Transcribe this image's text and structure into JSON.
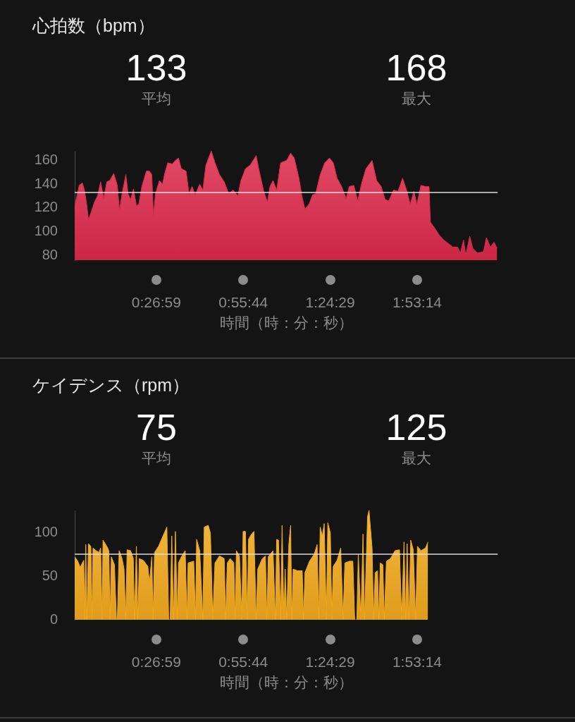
{
  "chart_data": [
    {
      "type": "area",
      "title": "心拍数（bpm）",
      "xlabel": "時間（時：分：秒）",
      "annotations": [
        "133",
        "平均",
        "168",
        "最大"
      ],
      "color": "#dd2a4b",
      "grid": false,
      "x": [
        0,
        0.008,
        0.025,
        0.042,
        0.054,
        0.067,
        0.076,
        0.092,
        0.109,
        0.126,
        0.143,
        0.16,
        0.177,
        0.193,
        0.215,
        0.235,
        0.247,
        0.261,
        0.282,
        0.294,
        0.308,
        0.324,
        0.34,
        0.353,
        0.37,
        0.395,
        0.412,
        0.425,
        0.434,
        0.445,
        0.467,
        0.484,
        0.496,
        0.513,
        0.538,
        0.555,
        0.572,
        0.588,
        0.614,
        0.63,
        0.647,
        0.664,
        0.689,
        0.706,
        0.723,
        0.753,
        0.773,
        0.798,
        0.824,
        0.849,
        0.874,
        0.899,
        0.916,
        0.941,
        0.967,
        1.0,
        1.017,
        1.042,
        1.062,
        1.076,
        1.093,
        1.113,
        1.135,
        1.168,
        1.19,
        1.21,
        1.236,
        1.252,
        1.269,
        1.291,
        1.311,
        1.328,
        1.353,
        1.378,
        1.404,
        1.425,
        1.446,
        1.471,
        1.496,
        1.513,
        1.538,
        1.56,
        1.58,
        1.605,
        1.639,
        1.664,
        1.689,
        1.711,
        1.731,
        1.757,
        1.782,
        1.807,
        1.829,
        1.849,
        1.869,
        1.886,
        1.908,
        1.933,
        1.953,
        1.96,
        1.984,
        2.009,
        2.034,
        2.059,
        2.084,
        2.11,
        2.126,
        2.143,
        2.155,
        2.177,
        2.194,
        2.219,
        2.253,
        2.269,
        2.29,
        2.311,
        2.328
      ],
      "values": [
        122,
        127,
        139,
        141,
        135,
        122,
        110,
        117,
        125,
        130,
        142,
        128,
        142,
        143,
        149,
        139,
        118,
        132,
        148,
        132,
        127,
        136,
        122,
        123,
        138,
        151,
        151,
        148,
        113,
        132,
        143,
        140,
        149,
        158,
        157,
        160,
        162,
        153,
        151,
        132,
        138,
        131,
        140,
        135,
        156,
        168,
        158,
        148,
        142,
        132,
        135,
        130,
        143,
        153,
        156,
        164,
        151,
        134,
        125,
        138,
        143,
        135,
        158,
        160,
        166,
        162,
        145,
        130,
        119,
        123,
        131,
        132,
        148,
        158,
        162,
        158,
        145,
        138,
        128,
        138,
        139,
        126,
        140,
        153,
        160,
        143,
        138,
        127,
        126,
        135,
        134,
        145,
        135,
        123,
        134,
        123,
        139,
        138,
        138,
        108,
        103,
        97,
        93,
        90,
        87,
        87,
        82,
        93,
        80,
        96,
        86,
        82,
        83,
        95,
        87,
        91,
        86
      ],
      "xlim": [
        0,
        2.33
      ],
      "xticks": [
        {
          "value": 0.4497,
          "label": "0:26:59"
        },
        {
          "value": 0.9289,
          "label": "0:55:44"
        },
        {
          "value": 1.4081,
          "label": "1:24:29"
        },
        {
          "value": 1.8872,
          "label": "1:53:14"
        }
      ],
      "ylim": [
        76,
        168
      ],
      "yticks": [
        80,
        100,
        120,
        140,
        160
      ],
      "ref_lines": [
        {
          "axis": "y",
          "value": 133,
          "color": "#dcdcdc"
        }
      ]
    },
    {
      "type": "area",
      "title": "ケイデンス（rpm）",
      "xlabel": "時間（時：分：秒）",
      "annotations": [
        "75",
        "平均",
        "125",
        "最大"
      ],
      "color": "#f2aa1e",
      "grid": false,
      "x": [
        0,
        0.017,
        0.03,
        0.042,
        0.05,
        0.055,
        0.061,
        0.067,
        0.076,
        0.089,
        0.096,
        0.101,
        0.118,
        0.134,
        0.143,
        0.151,
        0.156,
        0.177,
        0.188,
        0.195,
        0.202,
        0.219,
        0.23,
        0.235,
        0.245,
        0.261,
        0.272,
        0.281,
        0.289,
        0.308,
        0.323,
        0.329,
        0.34,
        0.348,
        0.356,
        0.378,
        0.403,
        0.412,
        0.425,
        0.432,
        0.44,
        0.462,
        0.487,
        0.508,
        0.518,
        0.526,
        0.535,
        0.545,
        0.555,
        0.566,
        0.572,
        0.588,
        0.609,
        0.619,
        0.625,
        0.656,
        0.666,
        0.672,
        0.689,
        0.706,
        0.714,
        0.736,
        0.748,
        0.761,
        0.773,
        0.798,
        0.824,
        0.832,
        0.841,
        0.857,
        0.877,
        0.884,
        0.891,
        0.908,
        0.921,
        0.928,
        0.941,
        0.951,
        0.958,
        0.975,
        0.988,
        1.0,
        1.009,
        1.034,
        1.051,
        1.059,
        1.067,
        1.093,
        1.106,
        1.113,
        1.123,
        1.135,
        1.143,
        1.153,
        1.16,
        1.168,
        1.18,
        1.19,
        1.197,
        1.204,
        1.227,
        1.254,
        1.261,
        1.269,
        1.294,
        1.32,
        1.336,
        1.345,
        1.353,
        1.365,
        1.375,
        1.387,
        1.395,
        1.409,
        1.417,
        1.425,
        1.446,
        1.466,
        1.479,
        1.489,
        1.513,
        1.533,
        1.543,
        1.555,
        1.563,
        1.577,
        1.589,
        1.597,
        1.614,
        1.622,
        1.639,
        1.647,
        1.656,
        1.669,
        1.676,
        1.684,
        1.698,
        1.706,
        1.718,
        1.74,
        1.765,
        1.79,
        1.802,
        1.815,
        1.824,
        1.832,
        1.842,
        1.852,
        1.866,
        1.879,
        1.889,
        1.908,
        1.933,
        1.947
      ],
      "values": [
        72,
        67,
        60,
        65,
        68,
        0,
        86,
        0,
        87,
        84,
        0,
        82,
        79,
        77,
        82,
        0,
        91,
        84,
        79,
        0,
        72,
        63,
        0,
        0,
        79,
        70,
        58,
        0,
        80,
        79,
        70,
        0,
        84,
        0,
        70,
        68,
        61,
        42,
        72,
        0,
        77,
        84,
        96,
        106,
        0,
        0,
        96,
        0,
        101,
        0,
        65,
        72,
        79,
        0,
        65,
        67,
        0,
        92,
        79,
        0,
        106,
        108,
        99,
        0,
        65,
        73,
        70,
        0,
        65,
        70,
        65,
        0,
        79,
        73,
        0,
        101,
        101,
        0,
        92,
        98,
        101,
        0,
        58,
        70,
        73,
        0,
        72,
        79,
        0,
        92,
        91,
        0,
        108,
        0,
        58,
        0,
        86,
        108,
        0,
        58,
        56,
        56,
        0,
        54,
        67,
        75,
        86,
        0,
        106,
        96,
        110,
        0,
        111,
        99,
        0,
        61,
        68,
        82,
        0,
        65,
        67,
        67,
        0,
        0,
        75,
        0,
        98,
        0,
        118,
        125,
        82,
        0,
        54,
        56,
        0,
        65,
        63,
        0,
        67,
        70,
        79,
        80,
        0,
        89,
        0,
        87,
        0,
        91,
        80,
        0,
        84,
        79,
        82,
        89
      ],
      "xlim": [
        0,
        2.33
      ],
      "xticks": [
        {
          "value": 0.4497,
          "label": "0:26:59"
        },
        {
          "value": 0.9289,
          "label": "0:55:44"
        },
        {
          "value": 1.4081,
          "label": "1:24:29"
        },
        {
          "value": 1.8872,
          "label": "1:53:14"
        }
      ],
      "ylim": [
        0,
        125
      ],
      "yticks": [
        0,
        50,
        100
      ],
      "ref_lines": [
        {
          "axis": "y",
          "value": 75,
          "color": "#dcdcdc"
        }
      ]
    }
  ]
}
